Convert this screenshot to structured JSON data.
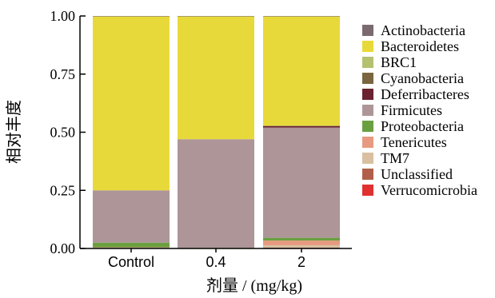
{
  "chart_data": {
    "type": "bar",
    "stacked": true,
    "xlabel": "剂量 / (mg/kg)",
    "ylabel": "相对丰度",
    "ylim": [
      0,
      1
    ],
    "yticks": [
      "0.00",
      "0.25",
      "0.50",
      "0.75",
      "1.00"
    ],
    "categories": [
      "Control",
      "0.4",
      "2"
    ],
    "legend_position": "right",
    "series": [
      {
        "name": "Verrucomicrobia",
        "color": "#e03030",
        "values": [
          0.0,
          0.0,
          0.002
        ]
      },
      {
        "name": "Unclassified",
        "color": "#b06048",
        "values": [
          0.001,
          0.0,
          0.002
        ]
      },
      {
        "name": "TM7",
        "color": "#d8c0a0",
        "values": [
          0.002,
          0.0,
          0.01
        ]
      },
      {
        "name": "Tenericutes",
        "color": "#e89a80",
        "values": [
          0.002,
          0.001,
          0.02
        ]
      },
      {
        "name": "Proteobacteria",
        "color": "#6aa040",
        "values": [
          0.02,
          0.002,
          0.012
        ]
      },
      {
        "name": "Firmicutes",
        "color": "#ad9598",
        "values": [
          0.225,
          0.467,
          0.474
        ]
      },
      {
        "name": "Deferribacteres",
        "color": "#6a2230",
        "values": [
          0.0,
          0.0,
          0.006
        ]
      },
      {
        "name": "Cyanobacteria",
        "color": "#7a6540",
        "values": [
          0.0,
          0.0,
          0.002
        ]
      },
      {
        "name": "BRC1",
        "color": "#b5c070",
        "values": [
          0.0,
          0.0,
          0.0
        ]
      },
      {
        "name": "Bacteroidetes",
        "color": "#e8d93a",
        "values": [
          0.748,
          0.528,
          0.47
        ]
      },
      {
        "name": "Actinobacteria",
        "color": "#7a6a70",
        "values": [
          0.002,
          0.002,
          0.002
        ]
      }
    ],
    "legend_order": [
      "Actinobacteria",
      "Bacteroidetes",
      "BRC1",
      "Cyanobacteria",
      "Deferribacteres",
      "Firmicutes",
      "Proteobacteria",
      "Tenericutes",
      "TM7",
      "Unclassified",
      "Verrucomicrobia"
    ]
  }
}
